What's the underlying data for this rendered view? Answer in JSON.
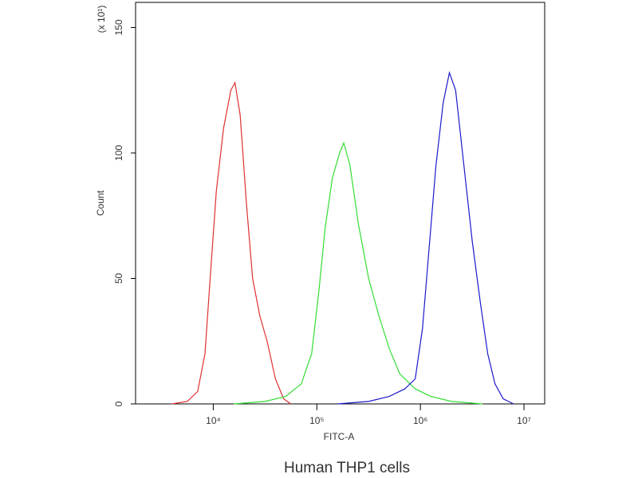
{
  "chart_data": {
    "type": "line",
    "title": "Human THP1 cells",
    "x_label": "FITC-A",
    "y_label": "Count",
    "y_multiplier": "(x 10¹)",
    "xscale": "log",
    "xlim": [
      1778,
      15850000
    ],
    "xticks": [
      {
        "value": 10000,
        "label": "10⁴"
      },
      {
        "value": 100000,
        "label": "10⁵"
      },
      {
        "value": 1000000,
        "label": "10⁶"
      },
      {
        "value": 10000000,
        "label": "10⁷"
      }
    ],
    "ylim": [
      0,
      160
    ],
    "yticks": [
      0,
      50,
      100,
      150
    ],
    "series": [
      {
        "color": "#e03030",
        "x": [
          3981,
          5623,
          7079,
          8318,
          9333,
          10715,
          12589,
          14791,
          16218,
          18197,
          20893,
          23988,
          28184,
          33113,
          39811,
          47863,
          56234
        ],
        "values": [
          0,
          1,
          5,
          20,
          50,
          85,
          110,
          125,
          128,
          115,
          80,
          50,
          35,
          25,
          10,
          2,
          0
        ]
      },
      {
        "color": "#33dd33",
        "x": [
          15849,
          31623,
          50119,
          70795,
          89125,
          104713,
          120226,
          141254,
          165959,
          181970,
          208930,
          251189,
          316228,
          398107,
          501187,
          630957,
          891251,
          1258925,
          1995262,
          3981072
        ],
        "values": [
          0,
          1,
          3,
          8,
          20,
          45,
          70,
          90,
          100,
          104,
          95,
          72,
          50,
          35,
          22,
          12,
          6,
          3,
          1,
          0
        ]
      },
      {
        "color": "#1a1acc",
        "x": [
          158489,
          316228,
          501187,
          707946,
          891251,
          1047129,
          1202264,
          1412538,
          1659587,
          1905461,
          2187762,
          2630268,
          3162278,
          3801894,
          4466836,
          5248075,
          6309573,
          7943282
        ],
        "values": [
          0,
          1,
          3,
          6,
          10,
          30,
          60,
          95,
          120,
          132,
          125,
          95,
          65,
          40,
          20,
          8,
          2,
          0
        ]
      }
    ]
  }
}
